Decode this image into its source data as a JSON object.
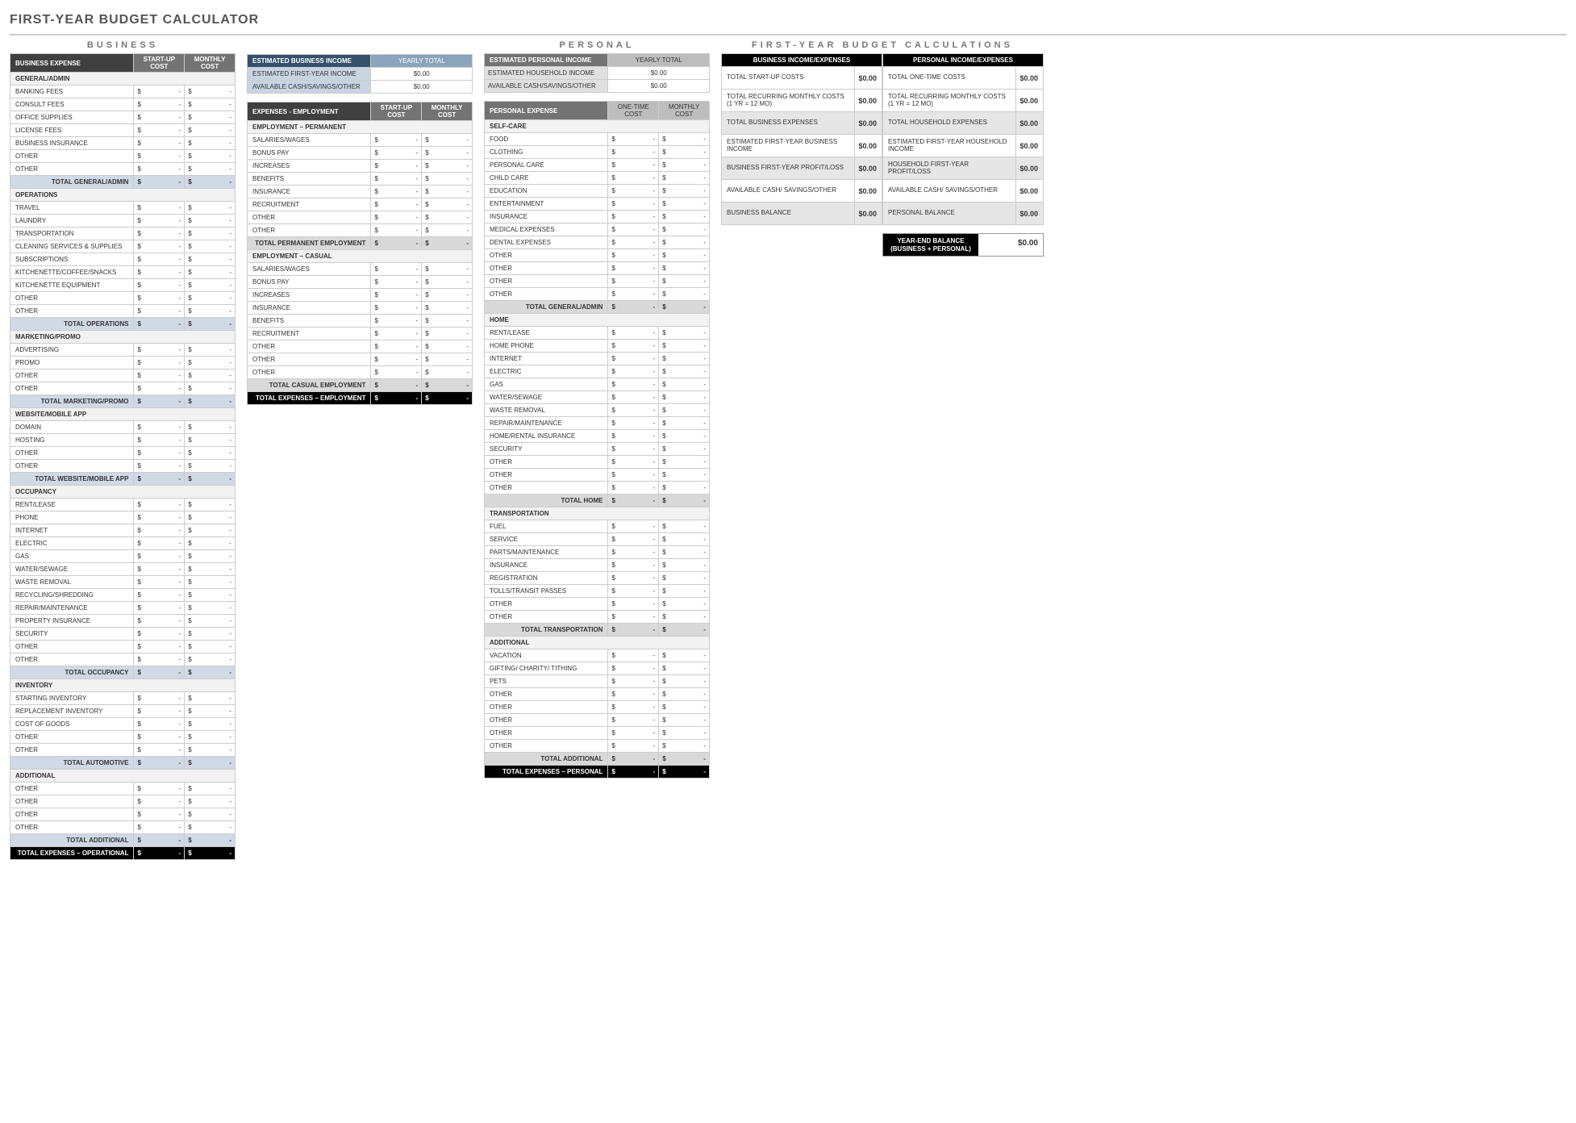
{
  "title": "FIRST-YEAR BUDGET CALCULATOR",
  "section_titles": {
    "business": "BUSINESS",
    "personal": "PERSONAL",
    "calc": "FIRST-YEAR BUDGET CALCULATIONS"
  },
  "col_labels": {
    "startup": "START-UP COST",
    "monthly": "MONTHLY COST",
    "onetime": "ONE-TIME COST",
    "yearly": "YEARLY TOTAL"
  },
  "dash": "-",
  "zero": "$0.00",
  "cur": "$",
  "biz_expense_hdr": "BUSINESS EXPENSE",
  "biz": [
    {
      "type": "sub",
      "label": "GENERAL/ADMIN"
    },
    {
      "type": "row",
      "label": "BANKING FEES"
    },
    {
      "type": "row",
      "label": "CONSULT FEES"
    },
    {
      "type": "row",
      "label": "OFFICE SUPPLIES"
    },
    {
      "type": "row",
      "label": "LICENSE FEES"
    },
    {
      "type": "row",
      "label": "BUSINESS INSURANCE"
    },
    {
      "type": "row",
      "label": "OTHER"
    },
    {
      "type": "row",
      "label": "OTHER"
    },
    {
      "type": "tot",
      "label": "TOTAL GENERAL/ADMIN"
    },
    {
      "type": "sub",
      "label": "OPERATIONS"
    },
    {
      "type": "row",
      "label": "TRAVEL"
    },
    {
      "type": "row",
      "label": "LAUNDRY"
    },
    {
      "type": "row",
      "label": "TRANSPORTATION"
    },
    {
      "type": "row",
      "label": "CLEANING SERVICES & SUPPLIES"
    },
    {
      "type": "row",
      "label": "SUBSCRIPTIONS"
    },
    {
      "type": "row",
      "label": "KITCHENETTE/COFFEE/SNACKS"
    },
    {
      "type": "row",
      "label": "KITCHENETTE EQUIPMENT"
    },
    {
      "type": "row",
      "label": "OTHER"
    },
    {
      "type": "row",
      "label": "OTHER"
    },
    {
      "type": "tot",
      "label": "TOTAL OPERATIONS"
    },
    {
      "type": "sub",
      "label": "MARKETING/PROMO"
    },
    {
      "type": "row",
      "label": "ADVERTISING"
    },
    {
      "type": "row",
      "label": "PROMO"
    },
    {
      "type": "row",
      "label": "OTHER"
    },
    {
      "type": "row",
      "label": "OTHER"
    },
    {
      "type": "tot",
      "label": "TOTAL MARKETING/PROMO"
    },
    {
      "type": "sub",
      "label": "WEBSITE/MOBILE APP"
    },
    {
      "type": "row",
      "label": "DOMAIN"
    },
    {
      "type": "row",
      "label": "HOSTING"
    },
    {
      "type": "row",
      "label": "OTHER"
    },
    {
      "type": "row",
      "label": "OTHER"
    },
    {
      "type": "tot",
      "label": "TOTAL WEBSITE/MOBILE APP"
    },
    {
      "type": "sub",
      "label": "OCCUPANCY"
    },
    {
      "type": "row",
      "label": "RENT/LEASE"
    },
    {
      "type": "row",
      "label": "PHONE"
    },
    {
      "type": "row",
      "label": "INTERNET"
    },
    {
      "type": "row",
      "label": "ELECTRIC"
    },
    {
      "type": "row",
      "label": "GAS"
    },
    {
      "type": "row",
      "label": "WATER/SEWAGE"
    },
    {
      "type": "row",
      "label": "WASTE REMOVAL"
    },
    {
      "type": "row",
      "label": "RECYCLING/SHREDDING"
    },
    {
      "type": "row",
      "label": "REPAIR/MAINTENANCE"
    },
    {
      "type": "row",
      "label": "PROPERTY INSURANCE"
    },
    {
      "type": "row",
      "label": "SECURITY"
    },
    {
      "type": "row",
      "label": "OTHER"
    },
    {
      "type": "row",
      "label": "OTHER"
    },
    {
      "type": "tot",
      "label": "TOTAL OCCUPANCY"
    },
    {
      "type": "sub",
      "label": "INVENTORY"
    },
    {
      "type": "row",
      "label": "STARTING INVENTORY"
    },
    {
      "type": "row",
      "label": "REPLACEMENT INVENTORY"
    },
    {
      "type": "row",
      "label": "COST OF GOODS"
    },
    {
      "type": "row",
      "label": "OTHER"
    },
    {
      "type": "row",
      "label": "OTHER"
    },
    {
      "type": "tot",
      "label": "TOTAL AUTOMOTIVE"
    },
    {
      "type": "sub",
      "label": "ADDITIONAL"
    },
    {
      "type": "row",
      "label": "OTHER"
    },
    {
      "type": "row",
      "label": "OTHER"
    },
    {
      "type": "row",
      "label": "OTHER"
    },
    {
      "type": "row",
      "label": "OTHER"
    },
    {
      "type": "tot",
      "label": "TOTAL ADDITIONAL"
    },
    {
      "type": "grand",
      "label": "TOTAL EXPENSES – OPERATIONAL"
    }
  ],
  "income_biz_hdr": "ESTIMATED BUSINESS INCOME",
  "income_biz": [
    {
      "label": "ESTIMATED FIRST-YEAR INCOME",
      "val": "$0.00"
    },
    {
      "label": "AVAILABLE CASH/SAVINGS/OTHER",
      "val": "$0.00"
    }
  ],
  "emp_hdr": "EXPENSES - EMPLOYMENT",
  "emp": [
    {
      "type": "sub",
      "label": "EMPLOYMENT – PERMANENT"
    },
    {
      "type": "row",
      "label": "SALARIES/WAGES"
    },
    {
      "type": "row",
      "label": "BONUS PAY"
    },
    {
      "type": "row",
      "label": "INCREASES"
    },
    {
      "type": "row",
      "label": "BENEFITS"
    },
    {
      "type": "row",
      "label": "INSURANCE"
    },
    {
      "type": "row",
      "label": "RECRUITMENT"
    },
    {
      "type": "row",
      "label": "OTHER"
    },
    {
      "type": "row",
      "label": "OTHER"
    },
    {
      "type": "totg",
      "label": "TOTAL PERMANENT EMPLOYMENT"
    },
    {
      "type": "sub",
      "label": "EMPLOYMENT – CASUAL"
    },
    {
      "type": "row",
      "label": "SALARIES/WAGES"
    },
    {
      "type": "row",
      "label": "BONUS PAY"
    },
    {
      "type": "row",
      "label": "INCREASES"
    },
    {
      "type": "row",
      "label": "INSURANCE"
    },
    {
      "type": "row",
      "label": "BENEFITS"
    },
    {
      "type": "row",
      "label": "RECRUITMENT"
    },
    {
      "type": "row",
      "label": "OTHER"
    },
    {
      "type": "row",
      "label": "OTHER"
    },
    {
      "type": "row",
      "label": "OTHER"
    },
    {
      "type": "totg",
      "label": "TOTAL CASUAL EMPLOYMENT"
    },
    {
      "type": "grand",
      "label": "TOTAL EXPENSES – EMPLOYMENT"
    }
  ],
  "income_pers_hdr": "ESTIMATED PERSONAL INCOME",
  "income_pers": [
    {
      "label": "ESTIMATED HOUSEHOLD INCOME",
      "val": "$0.00"
    },
    {
      "label": "AVAILABLE CASH/SAVINGS/OTHER",
      "val": "$0.00"
    }
  ],
  "pers_hdr": "PERSONAL EXPENSE",
  "pers": [
    {
      "type": "sub",
      "label": "SELF-CARE"
    },
    {
      "type": "row",
      "label": "FOOD"
    },
    {
      "type": "row",
      "label": "CLOTHING"
    },
    {
      "type": "row",
      "label": "PERSONAL CARE"
    },
    {
      "type": "row",
      "label": "CHILD CARE"
    },
    {
      "type": "row",
      "label": "EDUCATION"
    },
    {
      "type": "row",
      "label": "ENTERTAINMENT"
    },
    {
      "type": "row",
      "label": "INSURANCE"
    },
    {
      "type": "row",
      "label": "MEDICAL EXPENSES"
    },
    {
      "type": "row",
      "label": "DENTAL EXPENSES"
    },
    {
      "type": "row",
      "label": "OTHER"
    },
    {
      "type": "row",
      "label": "OTHER"
    },
    {
      "type": "row",
      "label": "OTHER"
    },
    {
      "type": "row",
      "label": "OTHER"
    },
    {
      "type": "totg",
      "label": "TOTAL GENERAL/ADMIN"
    },
    {
      "type": "sub",
      "label": "HOME"
    },
    {
      "type": "row",
      "label": "RENT/LEASE"
    },
    {
      "type": "row",
      "label": "HOME PHONE"
    },
    {
      "type": "row",
      "label": "INTERNET"
    },
    {
      "type": "row",
      "label": "ELECTRIC"
    },
    {
      "type": "row",
      "label": "GAS"
    },
    {
      "type": "row",
      "label": "WATER/SEWAGE"
    },
    {
      "type": "row",
      "label": "WASTE REMOVAL"
    },
    {
      "type": "row",
      "label": "REPAIR/MAINTENANCE"
    },
    {
      "type": "row",
      "label": "HOME/RENTAL INSURANCE"
    },
    {
      "type": "row",
      "label": "SECURITY"
    },
    {
      "type": "row",
      "label": "OTHER"
    },
    {
      "type": "row",
      "label": "OTHER"
    },
    {
      "type": "row",
      "label": "OTHER"
    },
    {
      "type": "totg",
      "label": "TOTAL HOME"
    },
    {
      "type": "sub",
      "label": "TRANSPORTATION"
    },
    {
      "type": "row",
      "label": "FUEL"
    },
    {
      "type": "row",
      "label": "SERVICE"
    },
    {
      "type": "row",
      "label": "PARTS/MAINTENANCE"
    },
    {
      "type": "row",
      "label": "INSURANCE"
    },
    {
      "type": "row",
      "label": "REGISTRATION"
    },
    {
      "type": "row",
      "label": "TOLLS/TRANSIT PASSES"
    },
    {
      "type": "row",
      "label": "OTHER"
    },
    {
      "type": "row",
      "label": "OTHER"
    },
    {
      "type": "totg",
      "label": "TOTAL TRANSPORTATION"
    },
    {
      "type": "sub",
      "label": "ADDITIONAL"
    },
    {
      "type": "row",
      "label": "VACATION"
    },
    {
      "type": "row",
      "label": "GIFTING/ CHARITY/ TITHING"
    },
    {
      "type": "row",
      "label": "PETS"
    },
    {
      "type": "row",
      "label": "OTHER"
    },
    {
      "type": "row",
      "label": "OTHER"
    },
    {
      "type": "row",
      "label": "OTHER"
    },
    {
      "type": "row",
      "label": "OTHER"
    },
    {
      "type": "row",
      "label": "OTHER"
    },
    {
      "type": "totg",
      "label": "TOTAL ADDITIONAL"
    },
    {
      "type": "grand",
      "label": "TOTAL EXPENSES – PERSONAL"
    }
  ],
  "calc_biz_hdr": "BUSINESS INCOME/EXPENSES",
  "calc_pers_hdr": "PERSONAL INCOME/EXPENSES",
  "calc_biz": [
    {
      "label": "TOTAL START-UP COSTS",
      "val": "$0.00",
      "gray": false
    },
    {
      "label": "TOTAL RECURRING MONTHLY COSTS (1 YR = 12 MO)",
      "val": "$0.00",
      "gray": false
    },
    {
      "label": "TOTAL BUSINESS EXPENSES",
      "val": "$0.00",
      "gray": true
    },
    {
      "label": "ESTIMATED FIRST-YEAR BUSINESS INCOME",
      "val": "$0.00",
      "gray": false
    },
    {
      "label": "BUSINESS FIRST-YEAR PROFIT/LOSS",
      "val": "$0.00",
      "gray": true
    },
    {
      "label": "AVAILABLE CASH/ SAVINGS/OTHER",
      "val": "$0.00",
      "gray": false
    },
    {
      "label": "BUSINESS BALANCE",
      "val": "$0.00",
      "gray": true
    }
  ],
  "calc_pers": [
    {
      "label": "TOTAL ONE-TIME COSTS",
      "val": "$0.00",
      "gray": false
    },
    {
      "label": "TOTAL RECURRING MONTHLY COSTS (1 YR = 12 MO)",
      "val": "$0.00",
      "gray": false
    },
    {
      "label": "TOTAL HOUSEHOLD EXPENSES",
      "val": "$0.00",
      "gray": true
    },
    {
      "label": "ESTIMATED FIRST-YEAR HOUSEHOLD INCOME",
      "val": "$0.00",
      "gray": false
    },
    {
      "label": "HOUSEHOLD FIRST-YEAR PROFIT/LOSS",
      "val": "$0.00",
      "gray": true
    },
    {
      "label": "AVAILABLE CASH/ SAVINGS/OTHER",
      "val": "$0.00",
      "gray": false
    },
    {
      "label": "PERSONAL BALANCE",
      "val": "$0.00",
      "gray": true
    }
  ],
  "yearend_label": "YEAR-END BALANCE (BUSINESS + PERSONAL)",
  "yearend_val": "$0.00"
}
